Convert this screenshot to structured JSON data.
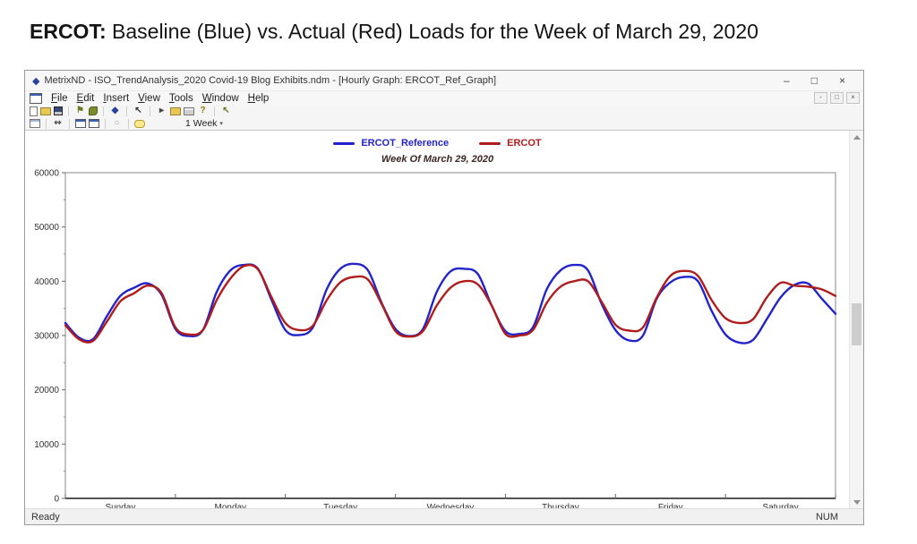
{
  "page": {
    "heading_bold": "ERCOT:",
    "heading_rest": " Baseline (Blue) vs. Actual (Red) Loads for the Week of March 29, 2020"
  },
  "window": {
    "title": "MetrixND - ISO_TrendAnalysis_2020 Covid-19 Blog Exhibits.ndm - [Hourly Graph: ERCOT_Ref_Graph]",
    "controls": {
      "minimize": "–",
      "maximize": "□",
      "close": "×"
    },
    "mdi_controls": {
      "minimize": "-",
      "restore": "□",
      "close": "×"
    },
    "menu": {
      "items": [
        "File",
        "Edit",
        "Insert",
        "View",
        "Tools",
        "Window",
        "Help"
      ]
    },
    "toolbar_row1": [
      {
        "name": "new-file-icon",
        "style": "page"
      },
      {
        "name": "open-file-icon",
        "style": "folder"
      },
      {
        "name": "save-icon",
        "style": "floppy"
      },
      {
        "name": "separator"
      },
      {
        "name": "flag-icon",
        "glyph": "⚑",
        "color": "#6b7a1e"
      },
      {
        "name": "paste-icon",
        "style": "leaf"
      },
      {
        "name": "separator"
      },
      {
        "name": "metrix-diamond-icon",
        "glyph": "◆",
        "color": "#2a3f9e"
      },
      {
        "name": "separator"
      },
      {
        "name": "pointer-icon",
        "glyph": "↖",
        "color": "#333333"
      },
      {
        "name": "separator"
      },
      {
        "name": "run-icon",
        "glyph": "▸",
        "color": "#444444"
      },
      {
        "name": "export-folder-icon",
        "style": "folder"
      },
      {
        "name": "print-icon",
        "style": "printer"
      },
      {
        "name": "help-icon",
        "glyph": "?",
        "color": "#8a7a00"
      },
      {
        "name": "separator"
      },
      {
        "name": "pointer-run-icon",
        "glyph": "↖",
        "color": "#6b7a1e"
      }
    ],
    "toolbar_row2": [
      {
        "name": "table-view-icon",
        "style": "table"
      },
      {
        "name": "separator"
      },
      {
        "name": "trace-tool-icon",
        "glyph": "↭",
        "color": "#555555"
      },
      {
        "name": "separator"
      },
      {
        "name": "window-view-icon",
        "style": "win"
      },
      {
        "name": "window-cascade-icon",
        "style": "win"
      },
      {
        "name": "separator"
      },
      {
        "name": "refresh-icon",
        "glyph": "○",
        "color": "#999999"
      },
      {
        "name": "separator"
      },
      {
        "name": "comment-icon",
        "style": "bubble"
      }
    ],
    "zoom_select": {
      "label": "1 Week",
      "caret": "▾"
    },
    "status": {
      "left": "Ready",
      "right": "NUM"
    }
  },
  "chart_data": {
    "type": "line",
    "title": "Week Of March 29, 2020",
    "x_day_labels": [
      "Sunday",
      "Monday",
      "Tuesday",
      "Wednesday",
      "Thursday",
      "Friday",
      "Saturday"
    ],
    "ylim": [
      0,
      60000
    ],
    "yticks": [
      0,
      10000,
      20000,
      30000,
      40000,
      50000,
      60000
    ],
    "y_minor_step": 5000,
    "hours_total": 168,
    "hours_step": 3,
    "grid": false,
    "legend_position": "top-center",
    "series": [
      {
        "name": "ERCOT_Reference",
        "color": "#2323cb",
        "values": [
          32300,
          29600,
          29300,
          33500,
          37300,
          38800,
          39600,
          37500,
          31200,
          29900,
          31000,
          38000,
          42000,
          43000,
          42300,
          36500,
          31000,
          30100,
          31500,
          38500,
          42300,
          43200,
          42000,
          36000,
          31200,
          29900,
          31200,
          38000,
          41800,
          42300,
          41300,
          35500,
          30800,
          30300,
          31500,
          38500,
          42000,
          43000,
          42000,
          35800,
          31000,
          29100,
          30000,
          36800,
          39800,
          40800,
          40000,
          34500,
          30200,
          28700,
          29200,
          33000,
          37000,
          39300,
          39600,
          36800,
          34000
        ]
      },
      {
        "name": "ERCOT",
        "color": "#b01c1c",
        "values": [
          31900,
          29300,
          29000,
          32500,
          36300,
          37800,
          39200,
          37800,
          31500,
          30200,
          31000,
          36500,
          40500,
          42800,
          42200,
          37000,
          32300,
          31000,
          31800,
          36500,
          39800,
          40800,
          40300,
          35800,
          30800,
          29800,
          30800,
          35500,
          38800,
          40000,
          39400,
          35500,
          30300,
          30000,
          31000,
          36000,
          39000,
          40000,
          40000,
          36200,
          32000,
          30900,
          31500,
          37000,
          41000,
          41900,
          41000,
          36500,
          33200,
          32300,
          33000,
          37000,
          39700,
          39200,
          39000,
          38500,
          37300
        ]
      }
    ]
  }
}
